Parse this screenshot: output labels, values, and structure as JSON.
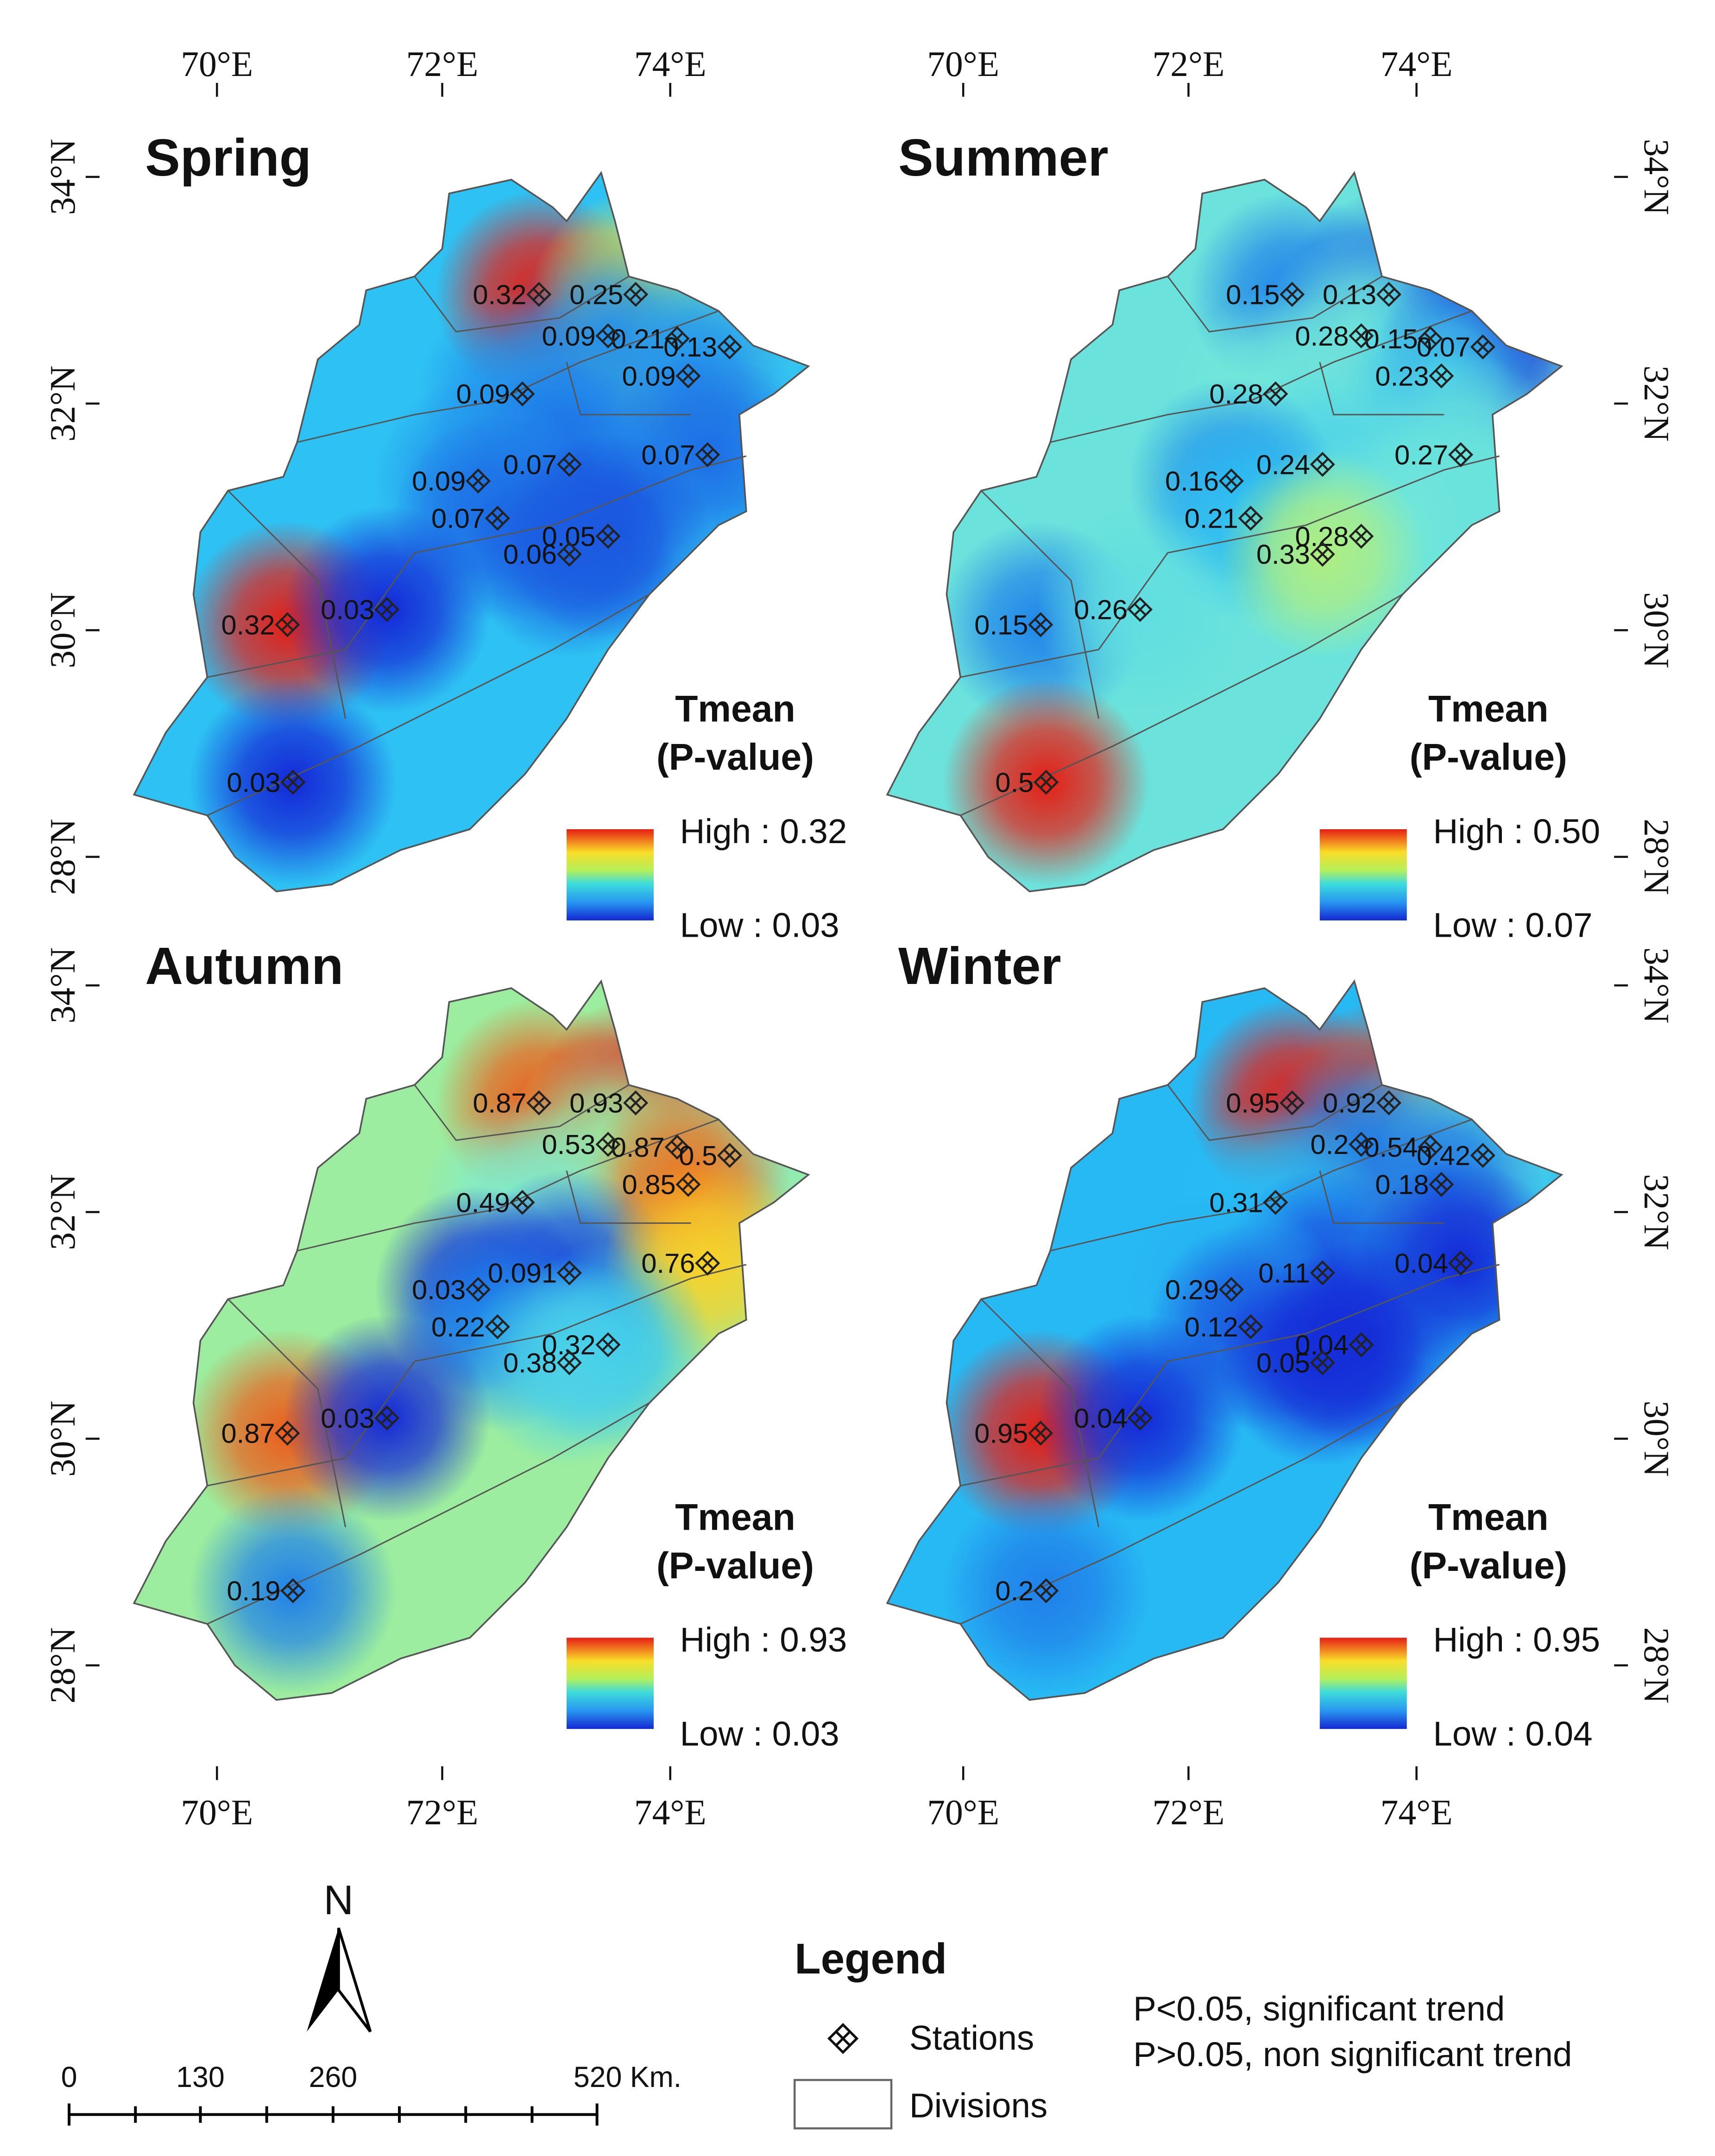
{
  "lon_ticks": [
    "70°E",
    "72°E",
    "74°E"
  ],
  "lat_ticks": [
    "34°N",
    "32°N",
    "30°N",
    "28°N"
  ],
  "panels": [
    {
      "title": "Spring",
      "legend_title": [
        "Tmean",
        "(P-value)"
      ],
      "high": "High : 0.32",
      "low": "Low : 0.03",
      "stations": [
        0.32,
        0.25,
        0.21,
        0.09,
        0.13,
        0.09,
        0.09,
        0.07,
        0.07,
        0.09,
        0.07,
        0.05,
        0.06,
        0.32,
        0.03,
        0.03
      ]
    },
    {
      "title": "Summer",
      "legend_title": [
        "Tmean",
        "(P-value)"
      ],
      "high": "High : 0.50",
      "low": "Low : 0.07",
      "stations": [
        0.15,
        0.13,
        0.15,
        0.28,
        0.07,
        0.23,
        0.28,
        0.24,
        0.27,
        0.16,
        0.21,
        0.28,
        0.33,
        0.15,
        0.26,
        0.5
      ]
    },
    {
      "title": "Autumn",
      "legend_title": [
        "Tmean",
        "(P-value)"
      ],
      "high": "High : 0.93",
      "low": "Low : 0.03",
      "stations": [
        0.87,
        0.93,
        0.87,
        0.53,
        0.5,
        0.85,
        0.49,
        0.091,
        0.76,
        0.03,
        0.22,
        0.32,
        0.38,
        0.87,
        0.03,
        0.19
      ]
    },
    {
      "title": "Winter",
      "legend_title": [
        "Tmean",
        "(P-value)"
      ],
      "high": "High : 0.95",
      "low": "Low : 0.04",
      "stations": [
        0.95,
        0.92,
        0.54,
        0.2,
        0.42,
        0.18,
        0.31,
        0.11,
        0.04,
        0.29,
        0.12,
        0.04,
        0.05,
        0.95,
        0.04,
        0.2
      ]
    }
  ],
  "north": "N",
  "scale": [
    "0",
    "130",
    "260",
    "520 Km."
  ],
  "legend": {
    "title": "Legend",
    "items": [
      "Stations",
      "Divisions"
    ]
  },
  "notes": [
    "P<0.05, significant trend",
    "P>0.05, non significant trend"
  ]
}
